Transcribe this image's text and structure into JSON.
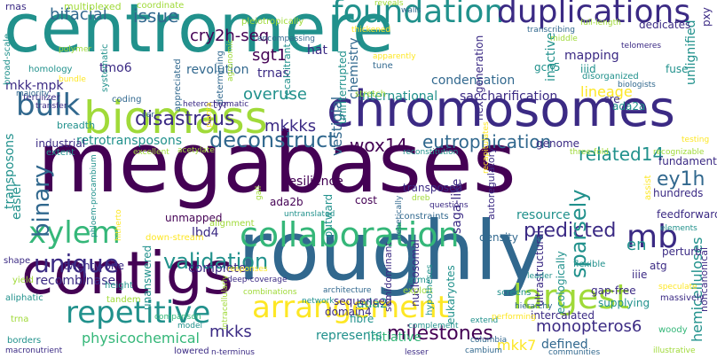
{
  "palette": {
    "dark-purple": "#440154",
    "indigo": "#3b2a84",
    "blue": "#31688e",
    "teal": "#21918c",
    "green": "#35b779",
    "lime": "#a0da39",
    "yellow": "#fde725",
    "background": "#ffffff"
  },
  "words": [
    {
      "id": "centromere",
      "text": "centromere",
      "color": "teal"
    },
    {
      "id": "megabases",
      "text": "megabases",
      "color": "dark-purple"
    },
    {
      "id": "roughly",
      "text": "roughly",
      "color": "blue"
    },
    {
      "id": "chromosomes",
      "text": "chromosomes",
      "color": "indigo"
    },
    {
      "id": "contigs",
      "text": "contigs",
      "color": "dark-purple"
    },
    {
      "id": "biomass",
      "text": "biomass",
      "color": "lime"
    },
    {
      "id": "foundation",
      "text": "foundation",
      "color": "teal"
    },
    {
      "id": "duplications",
      "text": "duplications",
      "color": "indigo"
    },
    {
      "id": "collaboration",
      "text": "collaboration",
      "color": "green"
    },
    {
      "id": "arrangement",
      "text": "arrangement",
      "color": "yellow"
    },
    {
      "id": "repetitive",
      "text": "repetitive",
      "color": "teal"
    },
    {
      "id": "largest",
      "text": "largest",
      "color": "lime"
    },
    {
      "id": "bulk",
      "text": "bulk",
      "color": "blue"
    },
    {
      "id": "xylem",
      "text": "xylem",
      "color": "green"
    },
    {
      "id": "binary",
      "text": "binary",
      "color": "blue"
    },
    {
      "id": "unique",
      "text": "unique",
      "color": "indigo"
    },
    {
      "id": "mb",
      "text": "mb",
      "color": "indigo"
    },
    {
      "id": "validation",
      "text": "validation",
      "color": "teal"
    },
    {
      "id": "deconstruct",
      "text": "deconstruct",
      "color": "blue"
    },
    {
      "id": "disastrous",
      "text": "disastrous",
      "color": "indigo"
    },
    {
      "id": "eutrophication",
      "text": "eutrophication",
      "color": "blue"
    },
    {
      "id": "predicted",
      "text": "predicted",
      "color": "indigo"
    },
    {
      "id": "sparsely",
      "text": "sparsely",
      "color": "teal"
    },
    {
      "id": "ey1h",
      "text": "ey1h",
      "color": "blue"
    },
    {
      "id": "repeats-en",
      "text": "en",
      "color": "teal"
    },
    {
      "id": "issue",
      "text": "issue",
      "color": "blue"
    },
    {
      "id": "bifacial",
      "text": "bifacial",
      "color": "blue"
    },
    {
      "id": "cry2h-seq",
      "text": "cry2h-seq",
      "color": "dark-purple"
    },
    {
      "id": "mkkks",
      "text": "mkkks",
      "color": "indigo"
    },
    {
      "id": "sgt1",
      "text": "sgt1",
      "color": "dark-purple"
    },
    {
      "id": "trnas",
      "text": "trnas",
      "color": "indigo"
    },
    {
      "id": "revolution",
      "text": "revolution",
      "color": "blue"
    },
    {
      "id": "overuse",
      "text": "overuse",
      "color": "teal"
    },
    {
      "id": "vestigial",
      "text": "vestigial",
      "color": "blue"
    },
    {
      "id": "wox14",
      "text": "wox14",
      "color": "dark-purple"
    },
    {
      "id": "related14",
      "text": "related14",
      "color": "teal"
    },
    {
      "id": "retrotransposons",
      "text": "retrotransposons",
      "color": "teal"
    },
    {
      "id": "milestones",
      "text": "milestones",
      "color": "dark-purple"
    },
    {
      "id": "monopteros6",
      "text": "monopteros6",
      "color": "indigo"
    },
    {
      "id": "mkk7",
      "text": "mkk7",
      "color": "yellow"
    },
    {
      "id": "defined",
      "text": "defined",
      "color": "blue"
    },
    {
      "id": "mkks",
      "text": "mkks",
      "color": "indigo"
    },
    {
      "id": "fibre",
      "text": "fibre",
      "color": "teal"
    },
    {
      "id": "ada2",
      "text": "ada2",
      "color": "teal"
    },
    {
      "id": "physicochemical",
      "text": "physicochemical",
      "color": "green"
    },
    {
      "id": "initiative",
      "text": "initiative",
      "color": "green"
    },
    {
      "id": "recombinase",
      "text": "recombinase",
      "color": "indigo"
    },
    {
      "id": "twenty-one",
      "text": "twenty-one",
      "color": "indigo"
    },
    {
      "id": "complete",
      "text": "complete",
      "color": "indigo"
    },
    {
      "id": "lbd4",
      "text": "lbd4",
      "color": "indigo"
    },
    {
      "id": "resource",
      "text": "resource",
      "color": "teal"
    },
    {
      "id": "lineage",
      "text": "lineage",
      "color": "yellow"
    },
    {
      "id": "saccharification",
      "text": "saccharification",
      "color": "indigo"
    },
    {
      "id": "international",
      "text": "international",
      "color": "teal"
    },
    {
      "id": "condensation",
      "text": "condensation",
      "color": "blue"
    },
    {
      "id": "mapping",
      "text": "mapping",
      "color": "indigo"
    },
    {
      "id": "gcn5",
      "text": "gcn5",
      "color": "teal"
    },
    {
      "id": "iiid",
      "text": "iiid",
      "color": "teal"
    },
    {
      "id": "hemicelluloses",
      "text": "hemicelluloses",
      "color": "teal"
    },
    {
      "id": "intercalated",
      "text": "intercalated",
      "color": "indigo"
    },
    {
      "id": "mkk-mpk",
      "text": "mkk-mpk",
      "color": "indigo"
    },
    {
      "id": "tmo6",
      "text": "tmo6",
      "color": "indigo"
    },
    {
      "id": "hat",
      "text": "hat",
      "color": "indigo"
    },
    {
      "id": "unignified",
      "text": "unlignified",
      "color": "teal"
    },
    {
      "id": "transposons",
      "text": "transposons",
      "color": "teal"
    },
    {
      "id": "saga-like",
      "text": "saga-like",
      "color": "indigo"
    },
    {
      "id": "hundreds",
      "text": "hundreds",
      "color": "indigo"
    },
    {
      "id": "iiie",
      "text": "iiie",
      "color": "indigo"
    },
    {
      "id": "easier",
      "text": "easier",
      "color": "teal"
    },
    {
      "id": "unanswered",
      "text": "unanswered",
      "color": "teal"
    },
    {
      "id": "unmapped",
      "text": "unmapped",
      "color": "dark-purple"
    },
    {
      "id": "ada2a",
      "text": "ada2a",
      "color": "teal"
    },
    {
      "id": "pxy",
      "text": "pxy",
      "color": "indigo"
    },
    {
      "id": "fuse",
      "text": "fuse",
      "color": "teal"
    },
    {
      "id": "inactive",
      "text": "inactive",
      "color": "teal"
    },
    {
      "id": "chemistry",
      "text": "chemistry",
      "color": "blue"
    },
    {
      "id": "uninterrupted",
      "text": "uninterrupted",
      "color": "teal"
    },
    {
      "id": "tyr",
      "text": "tyr",
      "color": "indigo"
    },
    {
      "id": "genome",
      "text": "genome",
      "color": "indigo"
    },
    {
      "id": "fundamental",
      "text": "fundamental",
      "color": "indigo"
    },
    {
      "id": "cree",
      "text": "cre",
      "color": "indigo"
    },
    {
      "id": "represents",
      "text": "represents",
      "color": "teal"
    },
    {
      "id": "sequenced",
      "text": "sequenced",
      "color": "indigo"
    },
    {
      "id": "domain4",
      "text": "domain4",
      "color": "indigo"
    },
    {
      "id": "outward",
      "text": "outward",
      "color": "teal"
    },
    {
      "id": "transposed",
      "text": "transposed",
      "color": "indigo"
    },
    {
      "id": "resilience",
      "text": "resilience",
      "color": "dark-purple"
    },
    {
      "id": "cost",
      "text": "cost",
      "color": "dark-purple"
    },
    {
      "id": "ada2b",
      "text": "ada2b",
      "color": "dark-purple"
    },
    {
      "id": "gap-free",
      "text": "gap-free",
      "color": "indigo"
    },
    {
      "id": "supplying",
      "text": "supplying",
      "color": "teal"
    },
    {
      "id": "ultrastructural",
      "text": "ultrastructural",
      "color": "indigo"
    },
    {
      "id": "eukaryotes",
      "text": "eukaryotes",
      "color": "teal"
    },
    {
      "id": "nucleosomal",
      "text": "nucleosomal",
      "color": "indigo"
    },
    {
      "id": "semidominant",
      "text": "semidominant",
      "color": "indigo"
    },
    {
      "id": "density",
      "text": "density",
      "color": "blue"
    },
    {
      "id": "autoregulatory",
      "text": "autoregulatory",
      "color": "indigo"
    },
    {
      "id": "next-generation",
      "text": "next-generation",
      "color": "indigo"
    },
    {
      "id": "perturb",
      "text": "perturb",
      "color": "indigo"
    },
    {
      "id": "feedforward",
      "text": "feedforward",
      "color": "indigo"
    },
    {
      "id": "atg",
      "text": "atg",
      "color": "indigo"
    },
    {
      "id": "ecologically",
      "text": "ecologically",
      "color": "teal"
    },
    {
      "id": "noncanonical",
      "text": "noncanonical",
      "color": "indigo"
    },
    {
      "id": "multiplexed",
      "text": "multiplexed",
      "color": "lime"
    },
    {
      "id": "rnas",
      "text": "rnas",
      "color": "indigo"
    },
    {
      "id": "coordinate",
      "text": "coordinate",
      "color": "lime"
    },
    {
      "id": "homology",
      "text": "homology",
      "color": "teal"
    },
    {
      "id": "fertilizer",
      "text": "fertilizer",
      "color": "indigo"
    },
    {
      "id": "broad-scale",
      "text": "broad-scale",
      "color": "teal"
    },
    {
      "id": "polymer",
      "text": "polymer",
      "color": "lime"
    },
    {
      "id": "systematic",
      "text": "systematic",
      "color": "teal"
    },
    {
      "id": "appreciated",
      "text": "appreciated",
      "color": "blue"
    },
    {
      "id": "determining",
      "text": "determining",
      "color": "blue"
    },
    {
      "id": "agronomic",
      "text": "agronomic",
      "color": "lime"
    },
    {
      "id": "pleiotropically",
      "text": "pleiotropically",
      "color": "lime"
    },
    {
      "id": "encompassing",
      "text": "encompassing",
      "color": "blue"
    },
    {
      "id": "recalcitrant",
      "text": "recalcitrant",
      "color": "teal"
    },
    {
      "id": "stretch",
      "text": "stretch",
      "color": "lime"
    },
    {
      "id": "tune",
      "text": "tune",
      "color": "blue"
    },
    {
      "id": "apparently",
      "text": "apparently",
      "color": "yellow"
    },
    {
      "id": "reveals",
      "text": "reveals",
      "color": "lime"
    },
    {
      "id": "walls",
      "text": "walls",
      "color": "blue"
    },
    {
      "id": "thickened",
      "text": "thickened",
      "color": "yellow"
    },
    {
      "id": "transcribing",
      "text": "transcribing",
      "color": "blue"
    },
    {
      "id": "full-length",
      "text": "full-length",
      "color": "lime"
    },
    {
      "id": "middle",
      "text": "middle",
      "color": "lime"
    },
    {
      "id": "dedicates",
      "text": "dedicates",
      "color": "indigo"
    },
    {
      "id": "telomeres",
      "text": "telomeres",
      "color": "indigo"
    },
    {
      "id": "disorganized",
      "text": "disorganized",
      "color": "teal"
    },
    {
      "id": "biologists",
      "text": "biologists",
      "color": "blue"
    },
    {
      "id": "coding",
      "text": "coding",
      "color": "blue"
    },
    {
      "id": "heterochromatic",
      "text": "heterochromatic",
      "color": "indigo"
    },
    {
      "id": "ser",
      "text": "ser",
      "color": "blue"
    },
    {
      "id": "planta",
      "text": "planta",
      "color": "yellow"
    },
    {
      "id": "majority",
      "text": "majority",
      "color": "blue"
    },
    {
      "id": "breadth",
      "text": "breadth",
      "color": "teal"
    },
    {
      "id": "bundle",
      "text": "bundle",
      "color": "yellow"
    },
    {
      "id": "industrial",
      "text": "industrial",
      "color": "indigo"
    },
    {
      "id": "extent",
      "text": "extent",
      "color": "teal"
    },
    {
      "id": "excellent",
      "text": "excellent",
      "color": "lime"
    },
    {
      "id": "acetylate",
      "text": "acetylate",
      "color": "lime"
    },
    {
      "id": "reconstitution",
      "text": "reconstitution",
      "color": "teal"
    },
    {
      "id": "three-fold",
      "text": "three-fold",
      "color": "lime"
    },
    {
      "id": "testing",
      "text": "testing",
      "color": "yellow"
    },
    {
      "id": "recognizable",
      "text": "recognizable",
      "color": "lime"
    },
    {
      "id": "phloem-procambium",
      "text": "phloem-procambium",
      "color": "teal"
    },
    {
      "id": "hitherto",
      "text": "hitherto",
      "color": "yellow"
    },
    {
      "id": "gall",
      "text": "gall",
      "color": "lime"
    },
    {
      "id": "down-stream",
      "text": "down-stream",
      "color": "yellow"
    },
    {
      "id": "genetically",
      "text": "genetically",
      "color": "blue"
    },
    {
      "id": "dreb",
      "text": "dreb",
      "color": "lime"
    },
    {
      "id": "questions",
      "text": "questions",
      "color": "indigo"
    },
    {
      "id": "untranslated",
      "text": "untranslated",
      "color": "teal"
    },
    {
      "id": "alignment",
      "text": "alignment",
      "color": "lime"
    },
    {
      "id": "constraints",
      "text": "constraints",
      "color": "blue"
    },
    {
      "id": "recapitulates",
      "text": "recapitulates",
      "color": "yellow"
    },
    {
      "id": "assist",
      "text": "assist",
      "color": "yellow"
    },
    {
      "id": "elements",
      "text": "elements",
      "color": "teal"
    },
    {
      "id": "shape",
      "text": "shape",
      "color": "indigo"
    },
    {
      "id": "yield",
      "text": "yield",
      "color": "lime"
    },
    {
      "id": "aliphatic",
      "text": "aliphatic",
      "color": "teal"
    },
    {
      "id": "trna",
      "text": "trna",
      "color": "lime"
    },
    {
      "id": "borders",
      "text": "borders",
      "color": "teal"
    },
    {
      "id": "macronutrient",
      "text": "macronutrient",
      "color": "indigo"
    },
    {
      "id": "height",
      "text": "height",
      "color": "teal"
    },
    {
      "id": "tandem",
      "text": "tandem",
      "color": "lime"
    },
    {
      "id": "comparison",
      "text": "comparison",
      "color": "green"
    },
    {
      "id": "model",
      "text": "model",
      "color": "teal"
    },
    {
      "id": "lowered",
      "text": "lowered",
      "color": "indigo"
    },
    {
      "id": "n-terminus",
      "text": "n-terminus",
      "color": "indigo"
    },
    {
      "id": "intracellularly",
      "text": "intracellularly",
      "color": "lime"
    },
    {
      "id": "responses",
      "text": "responses",
      "color": "yellow"
    },
    {
      "id": "deep-coverage",
      "text": "deep-coverage",
      "color": "indigo"
    },
    {
      "id": "combinations",
      "text": "combinations",
      "color": "lime"
    },
    {
      "id": "architecture",
      "text": "architecture",
      "color": "blue"
    },
    {
      "id": "network",
      "text": "network",
      "color": "teal"
    },
    {
      "id": "arms",
      "text": "arms",
      "color": "teal"
    },
    {
      "id": "exploit",
      "text": "exploit",
      "color": "lime"
    },
    {
      "id": "hypotheses",
      "text": "hypotheses",
      "color": "teal"
    },
    {
      "id": "complement",
      "text": "complement",
      "color": "teal"
    },
    {
      "id": "lesser",
      "text": "lesser",
      "color": "indigo"
    },
    {
      "id": "extend",
      "text": "extend",
      "color": "teal"
    },
    {
      "id": "communities",
      "text": "communities",
      "color": "blue"
    },
    {
      "id": "columbia",
      "text": "columbia",
      "color": "blue"
    },
    {
      "id": "cambium",
      "text": "cambium",
      "color": "blue"
    },
    {
      "id": "performing",
      "text": "performing",
      "color": "yellow"
    },
    {
      "id": "hierarchy",
      "text": "hierarchy",
      "color": "blue"
    },
    {
      "id": "screens",
      "text": "screens",
      "color": "teal"
    },
    {
      "id": "leader",
      "text": "leader",
      "color": "teal"
    },
    {
      "id": "flexible",
      "text": "flexible",
      "color": "teal"
    },
    {
      "id": "speculate",
      "text": "speculate",
      "color": "yellow"
    },
    {
      "id": "massively",
      "text": "massively",
      "color": "indigo"
    },
    {
      "id": "woody",
      "text": "woody",
      "color": "green"
    },
    {
      "id": "illustrative",
      "text": "illustrative",
      "color": "lime"
    },
    {
      "id": "transfer",
      "text": "transfer",
      "color": "indigo"
    }
  ]
}
